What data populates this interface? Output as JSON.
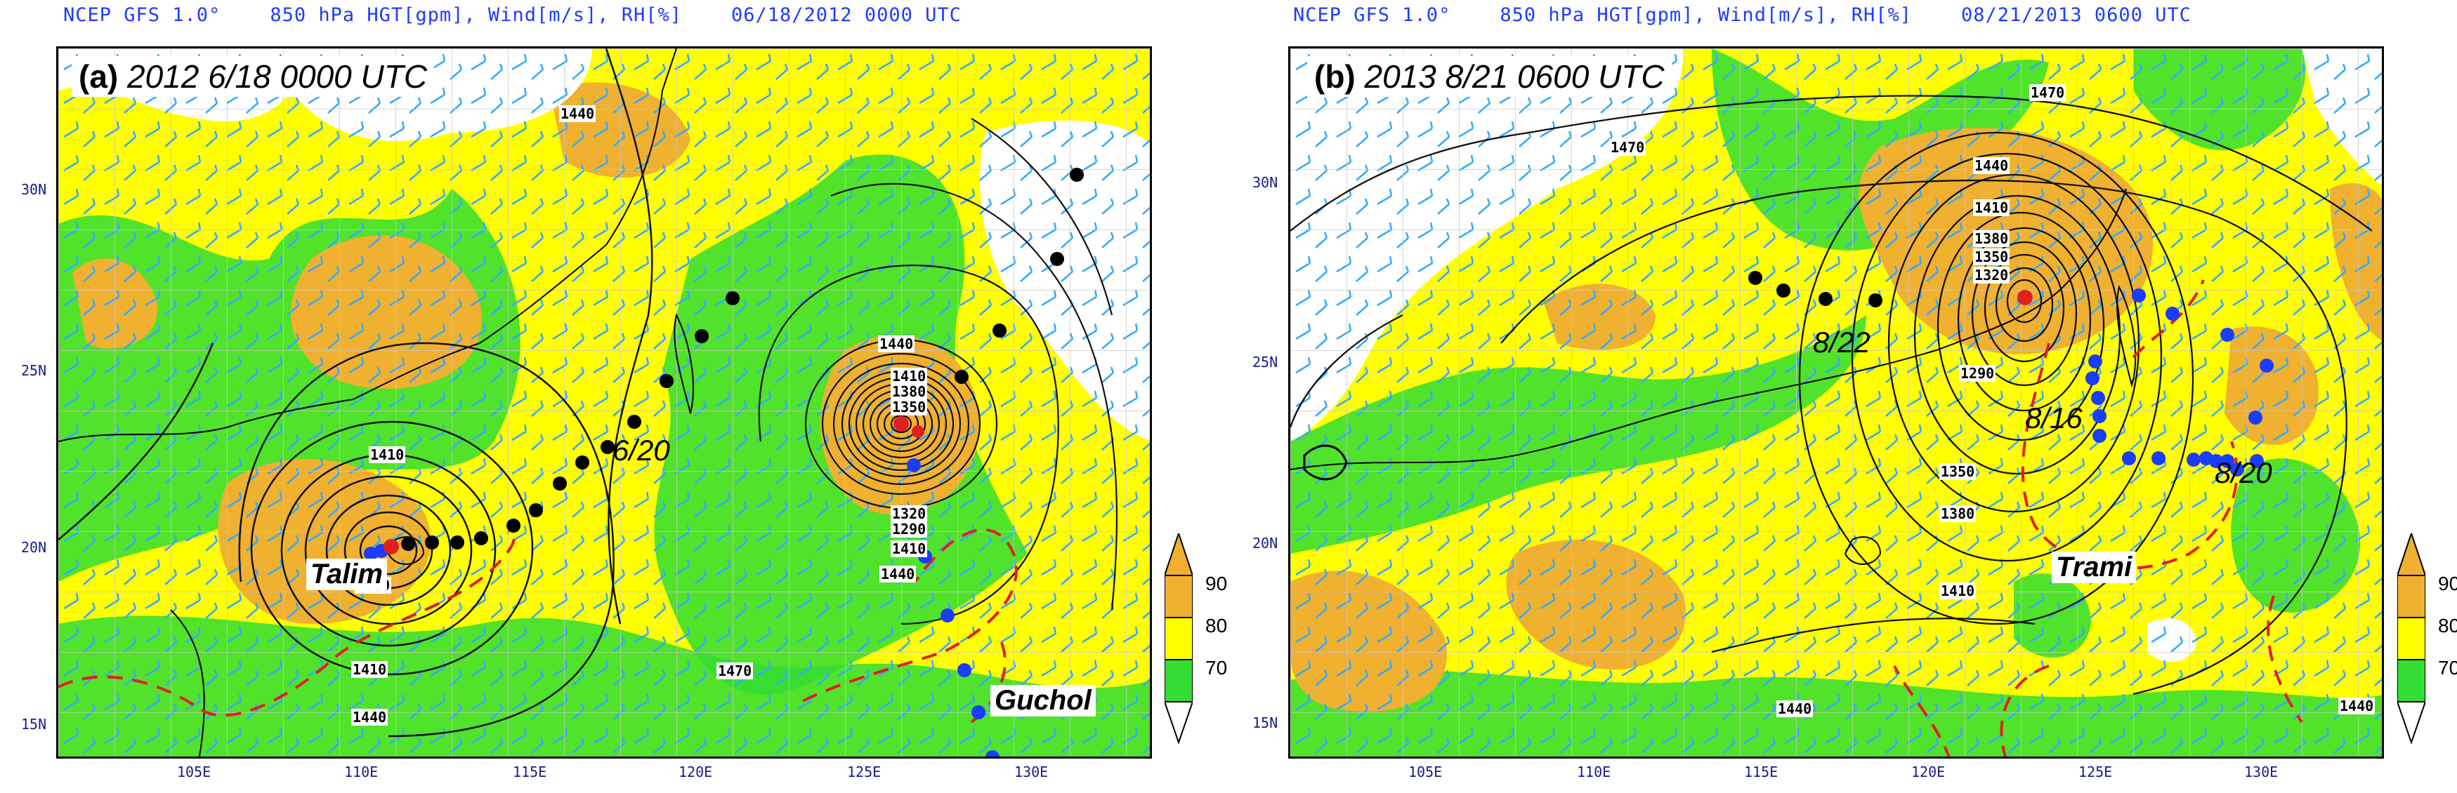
{
  "panels": [
    {
      "header": {
        "model": "NCEP GFS 1.0°",
        "fields": "850 hPa HGT[gpm], Wind[m/s], RH[%]",
        "datetime": "06/18/2012 0000 UTC"
      },
      "label_letter": "(a)",
      "label_text": "2012 6/18 0000 UTC",
      "lat_labels": [
        "30N",
        "25N",
        "20N",
        "15N"
      ],
      "lon_labels": [
        "105E",
        "110E",
        "115E",
        "120E",
        "125E",
        "130E"
      ],
      "date_labels": [
        "6/20"
      ],
      "storm_labels": [
        "Talim",
        "Guchol"
      ],
      "contour_labels": [
        "1440",
        "1410",
        "1380",
        "1410",
        "1440",
        "1440",
        "1410",
        "1380",
        "1350",
        "1320",
        "1290",
        "1410",
        "1440",
        "1470"
      ],
      "legend": {
        "ticks": [
          "90",
          "80",
          "70"
        ]
      }
    },
    {
      "header": {
        "model": "NCEP GFS 1.0°",
        "fields": "850 hPa HGT[gpm], Wind[m/s], RH[%]",
        "datetime": "08/21/2013 0600 UTC"
      },
      "label_letter": "(b)",
      "label_text": "2013 8/21 0600 UTC",
      "lat_labels": [
        "30N",
        "25N",
        "20N",
        "15N"
      ],
      "lon_labels": [
        "105E",
        "110E",
        "115E",
        "120E",
        "125E",
        "130E"
      ],
      "date_labels": [
        "8/22",
        "8/16",
        "8/20"
      ],
      "storm_labels": [
        "Trami"
      ],
      "contour_labels": [
        "1470",
        "1470",
        "1440",
        "1410",
        "1380",
        "1350",
        "1320",
        "1290",
        "1350",
        "1380",
        "1410",
        "1440",
        "1440"
      ],
      "legend": {
        "ticks": [
          "90",
          "80",
          "70"
        ]
      }
    }
  ],
  "colors": {
    "rh_90": "#f0b030",
    "rh_80": "#ffff00",
    "rh_70": "#33dd33",
    "wind_barb": "#33aaff",
    "track_past": "#000000",
    "track_future": "#1a3cff",
    "center": "#e02020",
    "dashed_region": "#e02020",
    "header_text": "#1e3cff"
  }
}
